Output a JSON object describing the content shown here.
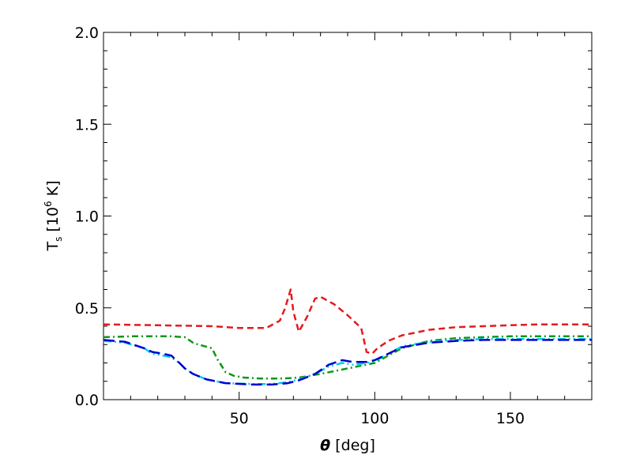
{
  "chart_data": {
    "type": "line",
    "xlabel": "θ [deg]",
    "xlabel_parts": {
      "symbol": "θ",
      "text": " [deg]"
    },
    "ylabel": "Ts [10⁶ K]",
    "ylabel_parts": {
      "main": "T",
      "sub": "s",
      "open": " [10",
      "sup": "6",
      "close": " K]"
    },
    "xlim": [
      0,
      180
    ],
    "ylim": [
      0,
      2
    ],
    "xticks": [
      50,
      100,
      150
    ],
    "xtick_labels": [
      "50",
      "100",
      "150"
    ],
    "yticks": [
      0,
      0.5,
      1,
      1.5,
      2
    ],
    "ytick_labels": [
      "0.0",
      "0.5",
      "1.0",
      "1.5",
      "2.0"
    ],
    "grid": false,
    "series": [
      {
        "color": "#e41a1c",
        "dash": "8,5",
        "x": [
          0,
          20,
          40,
          50,
          60,
          65,
          67,
          69,
          70,
          72,
          75,
          78,
          80,
          85,
          90,
          95,
          97,
          99,
          101,
          105,
          110,
          120,
          130,
          140,
          150,
          160,
          170,
          180
        ],
        "y": [
          0.41,
          0.405,
          0.4,
          0.39,
          0.39,
          0.43,
          0.5,
          0.6,
          0.48,
          0.37,
          0.45,
          0.55,
          0.56,
          0.52,
          0.46,
          0.39,
          0.26,
          0.25,
          0.28,
          0.32,
          0.35,
          0.38,
          0.395,
          0.4,
          0.405,
          0.41,
          0.41,
          0.41
        ]
      },
      {
        "color": "#109618",
        "dash": "8,4,2,4",
        "x": [
          0,
          10,
          20,
          25,
          30,
          33,
          35,
          40,
          42,
          45,
          48,
          52,
          58,
          65,
          72,
          80,
          90,
          100,
          110,
          120,
          130,
          140,
          150,
          160,
          170,
          180
        ],
        "y": [
          0.34,
          0.345,
          0.345,
          0.345,
          0.34,
          0.31,
          0.3,
          0.28,
          0.22,
          0.15,
          0.13,
          0.12,
          0.115,
          0.115,
          0.12,
          0.14,
          0.17,
          0.2,
          0.28,
          0.32,
          0.335,
          0.34,
          0.345,
          0.345,
          0.345,
          0.345
        ]
      },
      {
        "color": "#00ccee",
        "dash": "10,4,2,4,2,4",
        "x": [
          0,
          8,
          15,
          18,
          22,
          25,
          28,
          30,
          33,
          38,
          45,
          55,
          62,
          68,
          72,
          78,
          83,
          88,
          92,
          97,
          100,
          105,
          110,
          120,
          130,
          140,
          150,
          160,
          170,
          180
        ],
        "y": [
          0.32,
          0.31,
          0.28,
          0.25,
          0.24,
          0.23,
          0.2,
          0.17,
          0.14,
          0.11,
          0.09,
          0.085,
          0.085,
          0.095,
          0.11,
          0.14,
          0.18,
          0.2,
          0.19,
          0.2,
          0.21,
          0.25,
          0.29,
          0.315,
          0.325,
          0.33,
          0.33,
          0.33,
          0.33,
          0.33
        ]
      },
      {
        "color": "#0000cc",
        "dash": "14,6",
        "x": [
          0,
          8,
          15,
          18,
          22,
          25,
          28,
          30,
          33,
          38,
          45,
          55,
          62,
          68,
          72,
          78,
          83,
          88,
          92,
          97,
          100,
          105,
          110,
          120,
          130,
          140,
          150,
          160,
          170,
          180
        ],
        "y": [
          0.325,
          0.315,
          0.28,
          0.26,
          0.25,
          0.24,
          0.2,
          0.17,
          0.14,
          0.11,
          0.09,
          0.082,
          0.082,
          0.09,
          0.105,
          0.14,
          0.19,
          0.215,
          0.205,
          0.205,
          0.215,
          0.25,
          0.285,
          0.31,
          0.32,
          0.325,
          0.325,
          0.325,
          0.325,
          0.325
        ]
      }
    ]
  }
}
